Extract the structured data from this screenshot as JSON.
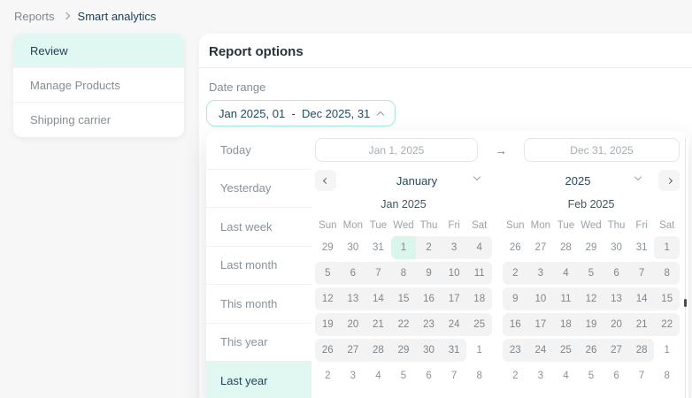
{
  "colors": {
    "accent_mint_bg": "#e1f8f2",
    "accent_mint_border": "#a5ecd9",
    "selected_day_bg": "#d9f5ec",
    "range_day_bg": "#f3f3f4",
    "text_dark": "#1d3f53",
    "text_gray": "#87929b",
    "page_bg": "#f7f7f8"
  },
  "breadcrumb": {
    "items": [
      {
        "label": "Reports",
        "current": false
      },
      {
        "label": "Smart analytics",
        "current": true
      }
    ]
  },
  "sidebar": {
    "items": [
      {
        "label": "Review",
        "active": true
      },
      {
        "label": "Manage Products",
        "active": false
      },
      {
        "label": "Shipping carrier",
        "active": false
      }
    ]
  },
  "main": {
    "title": "Report options",
    "date_range_label": "Date range",
    "date_range_value": "Jan 2025, 01  -  Dec 2025, 31"
  },
  "popover": {
    "presets": [
      {
        "label": "Today",
        "active": false
      },
      {
        "label": "Yesterday",
        "active": false
      },
      {
        "label": "Last week",
        "active": false
      },
      {
        "label": "Last month",
        "active": false
      },
      {
        "label": "This month",
        "active": false
      },
      {
        "label": "This year",
        "active": false
      },
      {
        "label": "Last year",
        "active": true
      }
    ],
    "inputs": {
      "start": "Jan 1, 2025",
      "end": "Dec 31, 2025",
      "separator": "→"
    },
    "nav": {
      "month": "January",
      "year": "2025"
    },
    "calendars": [
      {
        "title": "Jan 2025",
        "weekdays": [
          "Sun",
          "Mon",
          "Tue",
          "Wed",
          "Thu",
          "Fri",
          "Sat"
        ],
        "weeks": [
          [
            {
              "d": 29,
              "s": "out"
            },
            {
              "d": 30,
              "s": "out"
            },
            {
              "d": 31,
              "s": "out"
            },
            {
              "d": 1,
              "s": "start"
            },
            {
              "d": 2,
              "s": "range"
            },
            {
              "d": 3,
              "s": "range"
            },
            {
              "d": 4,
              "s": "range"
            }
          ],
          [
            {
              "d": 5,
              "s": "range"
            },
            {
              "d": 6,
              "s": "range"
            },
            {
              "d": 7,
              "s": "range"
            },
            {
              "d": 8,
              "s": "range"
            },
            {
              "d": 9,
              "s": "range"
            },
            {
              "d": 10,
              "s": "range"
            },
            {
              "d": 11,
              "s": "range"
            }
          ],
          [
            {
              "d": 12,
              "s": "range"
            },
            {
              "d": 13,
              "s": "range"
            },
            {
              "d": 14,
              "s": "range"
            },
            {
              "d": 15,
              "s": "range"
            },
            {
              "d": 16,
              "s": "range"
            },
            {
              "d": 17,
              "s": "range"
            },
            {
              "d": 18,
              "s": "range"
            }
          ],
          [
            {
              "d": 19,
              "s": "range"
            },
            {
              "d": 20,
              "s": "range"
            },
            {
              "d": 21,
              "s": "range"
            },
            {
              "d": 22,
              "s": "range"
            },
            {
              "d": 23,
              "s": "range"
            },
            {
              "d": 24,
              "s": "range"
            },
            {
              "d": 25,
              "s": "range"
            }
          ],
          [
            {
              "d": 26,
              "s": "range"
            },
            {
              "d": 27,
              "s": "range"
            },
            {
              "d": 28,
              "s": "range"
            },
            {
              "d": 29,
              "s": "range"
            },
            {
              "d": 30,
              "s": "range"
            },
            {
              "d": 31,
              "s": "range"
            },
            {
              "d": 1,
              "s": "out"
            }
          ],
          [
            {
              "d": 2,
              "s": "out"
            },
            {
              "d": 3,
              "s": "out"
            },
            {
              "d": 4,
              "s": "out"
            },
            {
              "d": 5,
              "s": "out"
            },
            {
              "d": 6,
              "s": "out"
            },
            {
              "d": 7,
              "s": "out"
            },
            {
              "d": 8,
              "s": "out"
            }
          ]
        ]
      },
      {
        "title": "Feb 2025",
        "weekdays": [
          "Sun",
          "Mon",
          "Tue",
          "Wed",
          "Thu",
          "Fri",
          "Sat"
        ],
        "weeks": [
          [
            {
              "d": 26,
              "s": "out"
            },
            {
              "d": 27,
              "s": "out"
            },
            {
              "d": 28,
              "s": "out"
            },
            {
              "d": 29,
              "s": "out"
            },
            {
              "d": 30,
              "s": "out"
            },
            {
              "d": 31,
              "s": "out"
            },
            {
              "d": 1,
              "s": "range"
            }
          ],
          [
            {
              "d": 2,
              "s": "range"
            },
            {
              "d": 3,
              "s": "range"
            },
            {
              "d": 4,
              "s": "range"
            },
            {
              "d": 5,
              "s": "range"
            },
            {
              "d": 6,
              "s": "range"
            },
            {
              "d": 7,
              "s": "range"
            },
            {
              "d": 8,
              "s": "range"
            }
          ],
          [
            {
              "d": 9,
              "s": "range"
            },
            {
              "d": 10,
              "s": "range"
            },
            {
              "d": 11,
              "s": "range"
            },
            {
              "d": 12,
              "s": "range"
            },
            {
              "d": 13,
              "s": "range"
            },
            {
              "d": 14,
              "s": "range"
            },
            {
              "d": 15,
              "s": "range"
            }
          ],
          [
            {
              "d": 16,
              "s": "range"
            },
            {
              "d": 17,
              "s": "range"
            },
            {
              "d": 18,
              "s": "range"
            },
            {
              "d": 19,
              "s": "range"
            },
            {
              "d": 20,
              "s": "range"
            },
            {
              "d": 21,
              "s": "range"
            },
            {
              "d": 22,
              "s": "range"
            }
          ],
          [
            {
              "d": 23,
              "s": "range"
            },
            {
              "d": 24,
              "s": "range"
            },
            {
              "d": 25,
              "s": "range"
            },
            {
              "d": 26,
              "s": "range"
            },
            {
              "d": 27,
              "s": "range"
            },
            {
              "d": 28,
              "s": "range"
            },
            {
              "d": 1,
              "s": "out"
            }
          ],
          [
            {
              "d": 2,
              "s": "out"
            },
            {
              "d": 3,
              "s": "out"
            },
            {
              "d": 4,
              "s": "out"
            },
            {
              "d": 5,
              "s": "out"
            },
            {
              "d": 6,
              "s": "out"
            },
            {
              "d": 7,
              "s": "out"
            },
            {
              "d": 8,
              "s": "out"
            }
          ]
        ]
      }
    ]
  },
  "icons": {
    "breadcrumb_separator": "chevron-right",
    "date_range_toggle": "chevron-up",
    "prev_month": "chevron-left",
    "next_month": "chevron-right",
    "month_dropdown": "chevron-down",
    "year_dropdown": "chevron-down",
    "between_inputs": "arrow-right"
  }
}
